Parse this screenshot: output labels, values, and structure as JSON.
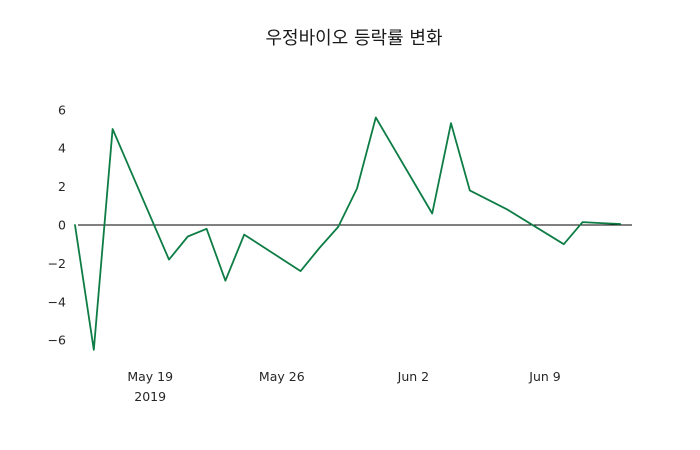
{
  "figure": {
    "background": "#ffffff"
  },
  "chart_data": {
    "type": "line",
    "title": "우정바이오 등락률 변화",
    "series_name": "등락률 (%)",
    "line_color": "#0e7d45",
    "zero_line_color": "#000000",
    "text_color": "#262626",
    "grid": false,
    "legend": "none",
    "ylim": [
      -7.3,
      6.8
    ],
    "y_ticks": [
      6,
      4,
      2,
      0,
      -2,
      -4,
      -6
    ],
    "x_tick_labels": [
      "May 19",
      "May 26",
      "Jun 2",
      "Jun 9"
    ],
    "x_tick_days": [
      4,
      11,
      18,
      25
    ],
    "x_year_label": "2019",
    "points": [
      {
        "date": "2019-05-15",
        "day": 0,
        "value": 0.0
      },
      {
        "date": "2019-05-16",
        "day": 1,
        "value": -6.5
      },
      {
        "date": "2019-05-17",
        "day": 2,
        "value": 5.0
      },
      {
        "date": "2019-05-20",
        "day": 5,
        "value": -1.8
      },
      {
        "date": "2019-05-21",
        "day": 6,
        "value": -0.6
      },
      {
        "date": "2019-05-22",
        "day": 7,
        "value": -0.2
      },
      {
        "date": "2019-05-23",
        "day": 8,
        "value": -2.9
      },
      {
        "date": "2019-05-24",
        "day": 9,
        "value": -0.5
      },
      {
        "date": "2019-05-27",
        "day": 12,
        "value": -2.4
      },
      {
        "date": "2019-05-28",
        "day": 13,
        "value": -1.2
      },
      {
        "date": "2019-05-29",
        "day": 14,
        "value": -0.1
      },
      {
        "date": "2019-05-30",
        "day": 15,
        "value": 1.9
      },
      {
        "date": "2019-05-31",
        "day": 16,
        "value": 5.6
      },
      {
        "date": "2019-06-03",
        "day": 19,
        "value": 0.6
      },
      {
        "date": "2019-06-04",
        "day": 20,
        "value": 5.3
      },
      {
        "date": "2019-06-05",
        "day": 21,
        "value": 1.8
      },
      {
        "date": "2019-06-07",
        "day": 23,
        "value": 0.8
      },
      {
        "date": "2019-06-10",
        "day": 26,
        "value": -1.0
      },
      {
        "date": "2019-06-11",
        "day": 27,
        "value": 0.15
      },
      {
        "date": "2019-06-12",
        "day": 28,
        "value": 0.1
      },
      {
        "date": "2019-06-13",
        "day": 29,
        "value": 0.05
      }
    ]
  }
}
